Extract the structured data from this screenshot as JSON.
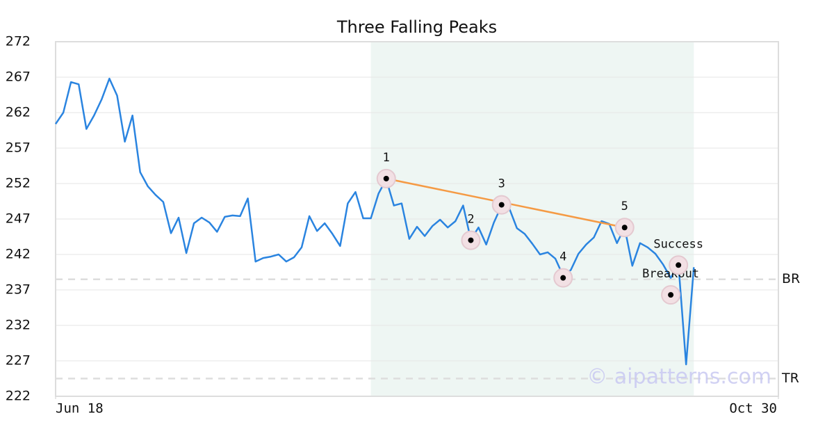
{
  "chart_data": {
    "type": "line",
    "title": "Three Falling Peaks",
    "values": [
      260.4,
      262.0,
      266.3,
      266.0,
      259.7,
      261.6,
      263.9,
      266.8,
      264.4,
      257.9,
      261.6,
      253.6,
      251.6,
      250.4,
      249.4,
      245.0,
      247.2,
      242.2,
      246.4,
      247.2,
      246.5,
      245.2,
      247.3,
      247.5,
      247.4,
      249.9,
      241.0,
      241.5,
      241.7,
      242.0,
      241.0,
      241.6,
      243.0,
      247.4,
      245.3,
      246.4,
      244.9,
      243.2,
      249.2,
      250.8,
      247.1,
      247.1,
      250.6,
      252.6,
      248.9,
      249.2,
      244.2,
      245.9,
      244.6,
      246.0,
      246.9,
      245.8,
      246.7,
      248.9,
      244.1,
      245.8,
      243.4,
      246.5,
      248.9,
      248.5,
      245.7,
      244.9,
      243.5,
      242.0,
      242.3,
      241.4,
      239.0,
      239.8,
      242.1,
      243.4,
      244.4,
      246.7,
      246.3,
      243.6,
      245.8,
      240.4,
      243.6,
      243.0,
      242.1,
      240.6,
      238.7,
      240.6,
      226.5,
      240.2
    ],
    "color": "#2a84e0",
    "xlim": [
      0,
      94
    ],
    "xticks": [
      {
        "value": 0,
        "label": "Jun 18"
      },
      {
        "value": 94,
        "label": "Oct 30"
      }
    ],
    "ylim": [
      222,
      272
    ],
    "yticks": [
      222,
      227,
      232,
      237,
      242,
      247,
      252,
      257,
      262,
      267,
      272
    ],
    "grid": true,
    "highlight": {
      "x": [
        41,
        83
      ],
      "color": "#eef6f3"
    },
    "hlines": [
      {
        "label": "BR",
        "value": 238.5
      },
      {
        "label": "TR",
        "value": 224.5
      }
    ],
    "trendline": {
      "x": [
        43,
        74
      ],
      "y": [
        252.7,
        245.8
      ],
      "color": "#f59a44"
    },
    "annotations": [
      {
        "label": "1",
        "x": 43,
        "y": 252.7
      },
      {
        "label": "2",
        "x": 54,
        "y": 244.0
      },
      {
        "label": "3",
        "x": 58,
        "y": 249.0
      },
      {
        "label": "4",
        "x": 66,
        "y": 238.7
      },
      {
        "label": "5",
        "x": 74,
        "y": 245.8
      },
      {
        "label": "Breakout",
        "x": 80,
        "y": 236.3
      },
      {
        "label": "Success",
        "x": 81,
        "y": 240.5
      }
    ],
    "watermark": "© aipatterns.com"
  }
}
